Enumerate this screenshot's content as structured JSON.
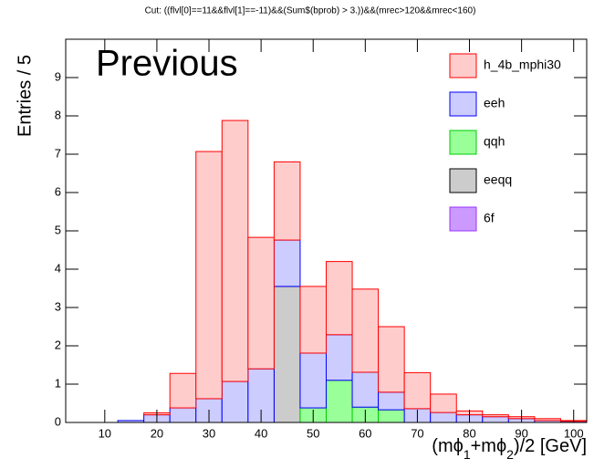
{
  "chart_data": {
    "type": "stacked_histogram",
    "title": "Cut: ((flvl[0]==11&&flvl[1]==-11)&&(Sum$(bprob) > 3.))&&(mrec>120&&mrec<160)",
    "annotation": "Previous",
    "y_label": "Entries / 5",
    "x_label": [
      "(mϕ",
      "1",
      "+mϕ",
      "2",
      ")/2 [GeV]"
    ],
    "bins": [
      2.5,
      7.5,
      12.5,
      17.5,
      22.5,
      27.5,
      32.5,
      37.5,
      42.5,
      47.5,
      52.5,
      57.5,
      62.5,
      67.5,
      72.5,
      77.5,
      82.5,
      87.5,
      92.5,
      97.5,
      102.5
    ],
    "series": [
      {
        "name": "h_4b_mphi30",
        "color": "#ffcccc",
        "edge": "#ff0000",
        "values": [
          0,
          0,
          0,
          0.05,
          0.9,
          6.45,
          6.81,
          3.43,
          2.04,
          1.74,
          1.91,
          2.17,
          1.71,
          0.94,
          0.48,
          0.1,
          0.05,
          0.05,
          0.05,
          0.02
        ]
      },
      {
        "name": "eeh",
        "color": "#ccccff",
        "edge": "#0000ff",
        "values": [
          0,
          0,
          0.05,
          0.2,
          0.38,
          0.62,
          1.07,
          1.4,
          1.21,
          1.43,
          1.19,
          0.91,
          0.46,
          0.36,
          0.26,
          0.2,
          0.15,
          0.1,
          0.05,
          0.03
        ]
      },
      {
        "name": "qqh",
        "color": "#99ff99",
        "edge": "#00cc00",
        "values": [
          0,
          0,
          0,
          0,
          0,
          0,
          0,
          0,
          0,
          0.38,
          1.1,
          0.4,
          0.33,
          0,
          0,
          0,
          0,
          0,
          0,
          0
        ]
      },
      {
        "name": "eeqq",
        "color": "#cccccc",
        "edge": "#000000",
        "values": [
          0,
          0,
          0,
          0,
          0,
          0,
          0,
          0,
          3.55,
          0,
          0,
          0,
          0,
          0,
          0,
          0,
          0,
          0,
          0,
          0
        ]
      },
      {
        "name": "6f",
        "color": "#cc99ff",
        "edge": "#9933ff",
        "values": [
          0,
          0,
          0,
          0,
          0,
          0,
          0,
          0,
          0,
          0,
          0,
          0,
          0,
          0,
          0,
          0,
          0,
          0,
          0,
          0
        ]
      }
    ],
    "xlim": [
      2.5,
      102.5
    ],
    "xticks": [
      10,
      20,
      30,
      40,
      50,
      60,
      70,
      80,
      90,
      100
    ],
    "ylim": [
      0,
      10
    ],
    "yticks": [
      0,
      1,
      2,
      3,
      4,
      5,
      6,
      7,
      8,
      9
    ],
    "legend": "upper right"
  }
}
